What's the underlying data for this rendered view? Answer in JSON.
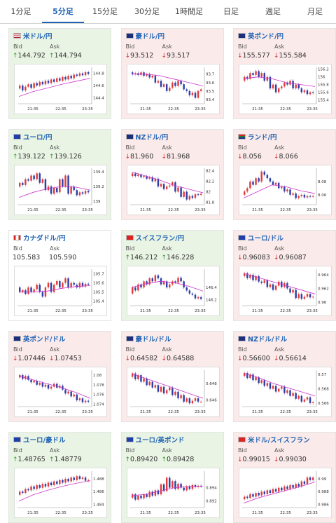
{
  "tabs": [
    "1分足",
    "5分足",
    "15分足",
    "30分足",
    "1時間足",
    "日足",
    "週足",
    "月足"
  ],
  "active_tab": 1,
  "labels": {
    "bid": "Bid",
    "ask": "Ask"
  },
  "colors": {
    "up_bg": "#eaf4e4",
    "down_bg": "#fbeaea",
    "up_arrow": "#2b9a2b",
    "down_arrow": "#d12b2b",
    "candle_up": "#e23b3b",
    "candle_down": "#2c3fa8",
    "ma": "#cc33cc"
  },
  "pairs": [
    {
      "name": "米ドル/円",
      "flag": "us-flag",
      "dir": "up",
      "bid": "144.792",
      "ask": "144.794",
      "bg": "up",
      "chart": {
        "yticks": [
          "144.8",
          "144.6",
          "144.4"
        ],
        "xticks": [
          "21:35",
          "22:35",
          "23:35"
        ],
        "ylim": [
          144.3,
          144.9
        ],
        "candles": [
          144.55,
          144.6,
          144.52,
          144.58,
          144.62,
          144.56,
          144.64,
          144.6,
          144.66,
          144.62,
          144.68,
          144.64,
          144.7,
          144.66,
          144.72,
          144.68,
          144.74,
          144.7,
          144.76,
          144.72,
          144.78,
          144.76,
          144.8,
          144.77,
          144.82,
          144.79
        ],
        "ma": [
          144.42,
          144.5,
          144.56,
          144.62,
          144.67,
          144.72
        ]
      }
    },
    {
      "name": "豪ドル/円",
      "flag": "au-flag",
      "dir": "down",
      "bid": "93.512",
      "ask": "93.517",
      "bg": "down",
      "chart": {
        "yticks": [
          "93.7",
          "93.6",
          "93.5",
          "93.4"
        ],
        "xticks": [
          "21:35",
          "22:35",
          "23:35"
        ],
        "ylim": [
          93.35,
          93.78
        ],
        "candles": [
          93.72,
          93.7,
          93.71,
          93.69,
          93.72,
          93.68,
          93.7,
          93.66,
          93.68,
          93.6,
          93.62,
          93.55,
          93.58,
          93.5,
          93.54,
          93.6,
          93.56,
          93.62,
          93.58,
          93.52,
          93.5,
          93.45,
          93.48,
          93.42,
          93.5,
          93.52
        ],
        "ma": [
          93.7,
          93.7,
          93.68,
          93.64,
          93.6,
          93.56
        ]
      }
    },
    {
      "name": "英ポンド/円",
      "flag": "gb-flag",
      "dir": "down",
      "bid": "155.577",
      "ask": "155.584",
      "bg": "down",
      "chart": {
        "yticks": [
          "156.2",
          "156",
          "155.8",
          "155.6",
          "155.4"
        ],
        "xticks": [
          "21:35",
          "22:35",
          "23:35"
        ],
        "ylim": [
          155.3,
          156.25
        ],
        "candles": [
          155.9,
          156.0,
          155.95,
          156.1,
          156.05,
          156.15,
          156.0,
          156.1,
          155.9,
          156.0,
          155.7,
          155.8,
          155.6,
          155.7,
          155.75,
          155.85,
          155.8,
          155.9,
          155.7,
          155.8,
          155.7,
          155.6,
          155.65,
          155.55,
          155.6,
          155.58
        ],
        "ma": [
          155.95,
          156.0,
          155.95,
          155.85,
          155.8,
          155.75
        ]
      }
    },
    {
      "name": "ユーロ/円",
      "flag": "eu-flag",
      "dir": "up",
      "bid": "139.122",
      "ask": "139.126",
      "bg": "up",
      "chart": {
        "yticks": [
          "139.4",
          "139.2",
          "139"
        ],
        "xticks": [
          "21:35",
          "22:35",
          "23:35"
        ],
        "ylim": [
          138.95,
          139.45
        ],
        "candles": [
          139.2,
          139.25,
          139.22,
          139.3,
          139.28,
          139.35,
          139.3,
          139.38,
          139.25,
          139.3,
          139.15,
          139.2,
          139.1,
          139.18,
          139.12,
          139.3,
          139.2,
          139.35,
          139.1,
          139.2,
          139.15,
          139.08,
          139.12,
          139.1,
          139.14,
          139.12
        ],
        "ma": [
          139.05,
          139.12,
          139.17,
          139.2,
          139.19,
          139.15
        ]
      }
    },
    {
      "name": "NZドル/円",
      "flag": "nz-flag",
      "dir": "down",
      "bid": "81.960",
      "ask": "81.968",
      "bg": "down",
      "chart": {
        "yticks": [
          "82.4",
          "82.2",
          "82",
          "81.8"
        ],
        "xticks": [
          "21:35",
          "22:35",
          "23:35"
        ],
        "ylim": [
          81.75,
          82.45
        ],
        "candles": [
          82.3,
          82.35,
          82.3,
          82.33,
          82.28,
          82.3,
          82.25,
          82.28,
          82.2,
          82.25,
          82.1,
          82.15,
          82.05,
          82.1,
          82.12,
          82.18,
          82.0,
          82.08,
          81.9,
          82.0,
          81.85,
          81.92,
          81.88,
          81.95,
          81.94,
          81.96
        ],
        "ma": [
          82.38,
          82.3,
          82.22,
          82.12,
          82.05,
          81.98
        ]
      }
    },
    {
      "name": "ランド/円",
      "flag": "za-flag",
      "dir": "down",
      "bid": "8.056",
      "ask": "8.066",
      "bg": "down",
      "chart": {
        "yticks": [
          "8.08",
          "8.06"
        ],
        "xticks": [
          "21:35",
          "22:35",
          "23:35"
        ],
        "ylim": [
          8.045,
          8.1
        ],
        "candles": [
          8.06,
          8.065,
          8.07,
          8.08,
          8.075,
          8.085,
          8.08,
          8.095,
          8.09,
          8.085,
          8.08,
          8.075,
          8.078,
          8.07,
          8.072,
          8.065,
          8.068,
          8.06,
          8.062,
          8.055,
          8.058,
          8.06,
          8.056,
          8.058,
          8.057,
          8.058
        ],
        "ma": [
          8.055,
          8.065,
          8.075,
          8.072,
          8.066,
          8.062
        ]
      }
    },
    {
      "name": "カナダドル/円",
      "flag": "ca-flag",
      "dir": "none",
      "bid": "105.583",
      "ask": "105.590",
      "bg": "neutral",
      "chart": {
        "yticks": [
          "105.7",
          "105.6",
          "105.5",
          "105.4"
        ],
        "xticks": [
          "21:35",
          "22:35",
          "23:35"
        ],
        "ylim": [
          105.35,
          105.75
        ],
        "candles": [
          105.55,
          105.5,
          105.52,
          105.48,
          105.55,
          105.5,
          105.53,
          105.58,
          105.5,
          105.45,
          105.55,
          105.6,
          105.5,
          105.58,
          105.62,
          105.55,
          105.6,
          105.65,
          105.55,
          105.6,
          105.58,
          105.55,
          105.6,
          105.56,
          105.59,
          105.58
        ],
        "ma": [
          105.5,
          105.5,
          105.51,
          105.54,
          105.56,
          105.57
        ]
      }
    },
    {
      "name": "スイスフラン/円",
      "flag": "ch-flag",
      "dir": "up",
      "bid": "146.212",
      "ask": "146.228",
      "bg": "up",
      "chart": {
        "yticks": [
          "146.4",
          "146.2"
        ],
        "xticks": [
          "21:35",
          "22:35",
          "23:35"
        ],
        "ylim": [
          146.1,
          146.7
        ],
        "candles": [
          146.3,
          146.4,
          146.35,
          146.45,
          146.4,
          146.5,
          146.45,
          146.55,
          146.5,
          146.6,
          146.55,
          146.45,
          146.5,
          146.4,
          146.45,
          146.5,
          146.48,
          146.56,
          146.5,
          146.4,
          146.35,
          146.3,
          146.28,
          146.22,
          146.24,
          146.21
        ],
        "ma": [
          146.4,
          146.46,
          146.5,
          146.48,
          146.42,
          146.34
        ]
      }
    },
    {
      "name": "ユーロ/ドル",
      "flag": "eu-flag",
      "dir": "down",
      "bid": "0.96083",
      "ask": "0.96087",
      "bg": "down",
      "chart": {
        "yticks": [
          "0.964",
          "0.962",
          "0.96"
        ],
        "xticks": [
          "21:35",
          "22:35",
          "23:35"
        ],
        "ylim": [
          0.9595,
          0.9648
        ],
        "candles": [
          0.9638,
          0.9642,
          0.9635,
          0.964,
          0.9632,
          0.9638,
          0.963,
          0.9628,
          0.9632,
          0.9622,
          0.9626,
          0.9618,
          0.9624,
          0.963,
          0.9622,
          0.9628,
          0.962,
          0.9614,
          0.9618,
          0.9606,
          0.9612,
          0.9605,
          0.9608,
          0.9612,
          0.9607,
          0.9608
        ],
        "ma": [
          0.9642,
          0.9636,
          0.963,
          0.9624,
          0.9618,
          0.9612
        ]
      }
    },
    {
      "name": "英ポンド/ドル",
      "flag": "gb-flag",
      "dir": "down",
      "bid": "1.07446",
      "ask": "1.07453",
      "bg": "down",
      "chart": {
        "yticks": [
          "1.08",
          "1.078",
          "1.076",
          "1.074"
        ],
        "xticks": [
          "21:35",
          "22:35",
          "23:35"
        ],
        "ylim": [
          1.0735,
          1.081
        ],
        "candles": [
          1.0795,
          1.08,
          1.0792,
          1.0798,
          1.079,
          1.0785,
          1.0788,
          1.078,
          1.0784,
          1.0776,
          1.078,
          1.0772,
          1.0776,
          1.0782,
          1.0774,
          1.0778,
          1.077,
          1.0762,
          1.0766,
          1.0756,
          1.076,
          1.0748,
          1.0752,
          1.0744,
          1.0747,
          1.0745
        ],
        "ma": [
          1.0798,
          1.079,
          1.0782,
          1.0774,
          1.0764,
          1.0752
        ]
      }
    },
    {
      "name": "豪ドル/ドル",
      "flag": "au-flag",
      "dir": "down",
      "bid": "0.64582",
      "ask": "0.64588",
      "bg": "down",
      "chart": {
        "yticks": [
          "0.648",
          "0.646"
        ],
        "xticks": [
          "21:35",
          "22:35",
          "23:35"
        ],
        "ylim": [
          0.6452,
          0.6496
        ],
        "candles": [
          0.6488,
          0.6492,
          0.6485,
          0.649,
          0.6482,
          0.6486,
          0.6478,
          0.6482,
          0.6475,
          0.6478,
          0.647,
          0.6476,
          0.6468,
          0.6472,
          0.6475,
          0.6466,
          0.647,
          0.6462,
          0.6466,
          0.6458,
          0.6462,
          0.6456,
          0.6459,
          0.6462,
          0.6458,
          0.6458
        ],
        "ma": [
          0.6492,
          0.6486,
          0.648,
          0.6474,
          0.6468,
          0.6462
        ]
      }
    },
    {
      "name": "NZドル/ドル",
      "flag": "nz-flag",
      "dir": "down",
      "bid": "0.56600",
      "ask": "0.56614",
      "bg": "down",
      "chart": {
        "yticks": [
          "0.57",
          "0.568",
          "0.566"
        ],
        "xticks": [
          "21:35",
          "22:35",
          "23:35"
        ],
        "ylim": [
          0.5655,
          0.5706
        ],
        "candles": [
          0.5698,
          0.5702,
          0.5695,
          0.57,
          0.5692,
          0.5696,
          0.5688,
          0.5692,
          0.5684,
          0.5688,
          0.568,
          0.5684,
          0.5676,
          0.568,
          0.5683,
          0.5674,
          0.5678,
          0.567,
          0.5674,
          0.5666,
          0.567,
          0.5662,
          0.5665,
          0.5668,
          0.566,
          0.5661
        ],
        "ma": [
          0.5702,
          0.5696,
          0.5688,
          0.5682,
          0.5676,
          0.567
        ]
      }
    },
    {
      "name": "ユーロ/豪ドル",
      "flag": "eu-flag",
      "dir": "up",
      "bid": "1.48765",
      "ask": "1.48779",
      "bg": "up",
      "chart": {
        "yticks": [
          "1.488",
          "1.486",
          "1.484"
        ],
        "xticks": [
          "21:35",
          "22:35",
          "23:35"
        ],
        "ylim": [
          1.4835,
          1.4892
        ],
        "candles": [
          1.4855,
          1.486,
          1.4858,
          1.4864,
          1.4862,
          1.4868,
          1.4864,
          1.487,
          1.4866,
          1.4872,
          1.4868,
          1.4874,
          1.487,
          1.4876,
          1.4872,
          1.4878,
          1.4874,
          1.488,
          1.4876,
          1.4882,
          1.4878,
          1.4884,
          1.488,
          1.4882,
          1.4877,
          1.4878
        ],
        "ma": [
          1.4845,
          1.4855,
          1.4862,
          1.4868,
          1.4873,
          1.4877
        ]
      }
    },
    {
      "name": "ユーロ/英ポンド",
      "flag": "eu-flag",
      "dir": "up",
      "bid": "0.89420",
      "ask": "0.89428",
      "bg": "up",
      "chart": {
        "yticks": [
          "0.894",
          "0.892"
        ],
        "xticks": [
          "21:35",
          "22:35",
          "23:35"
        ],
        "ylim": [
          0.891,
          0.8965
        ],
        "candles": [
          0.8925,
          0.893,
          0.8922,
          0.8928,
          0.8924,
          0.893,
          0.8926,
          0.8934,
          0.8928,
          0.8936,
          0.893,
          0.8945,
          0.8935,
          0.8955,
          0.894,
          0.895,
          0.8938,
          0.8946,
          0.894,
          0.8936,
          0.8942,
          0.8938,
          0.8944,
          0.8941,
          0.8943,
          0.8942
        ],
        "ma": [
          0.8928,
          0.893,
          0.8935,
          0.894,
          0.8942,
          0.8942
        ]
      }
    },
    {
      "name": "米ドル/スイスフラン",
      "flag": "ch-flag",
      "dir": "down",
      "bid": "0.99015",
      "ask": "0.99030",
      "bg": "down",
      "chart": {
        "yticks": [
          "0.99",
          "0.988",
          "0.986"
        ],
        "xticks": [
          "21:35",
          "22:35",
          "23:35"
        ],
        "ylim": [
          0.9855,
          0.9912
        ],
        "candles": [
          0.9868,
          0.9872,
          0.987,
          0.9876,
          0.9872,
          0.9878,
          0.9874,
          0.988,
          0.9876,
          0.9882,
          0.9878,
          0.9884,
          0.988,
          0.9886,
          0.9882,
          0.9888,
          0.9884,
          0.989,
          0.9886,
          0.9892,
          0.9888,
          0.9896,
          0.9892,
          0.9902,
          0.9898,
          0.9902
        ],
        "ma": [
          0.9862,
          0.987,
          0.9876,
          0.9882,
          0.9888,
          0.9895
        ]
      }
    }
  ]
}
